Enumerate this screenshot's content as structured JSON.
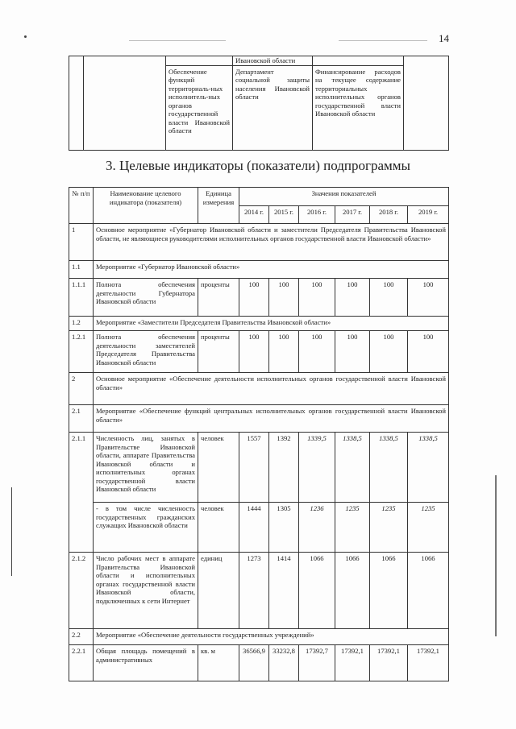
{
  "page_number": "14",
  "top_table": {
    "row0": {
      "responsible": "Ивановской области"
    },
    "row1": {
      "measure": "Обеспечение функций территориаль-ных исполнитель-ных органов государственной власти Ивановской области",
      "responsible": "Департамент социальной защиты населения Ивановской области",
      "description": "Финансирование расходов на текущее содержание территориальных исполнительных органов государственной власти Ивановской области"
    }
  },
  "section_title": "3. Целевые индикаторы (показатели) подпрограммы",
  "indicators": {
    "headers": {
      "num": "№ п/п",
      "name": "Наименование целевого индикатора (показателя)",
      "unit": "Единица измерения",
      "values": "Значения показателей",
      "years": [
        "2014 г.",
        "2015 г.",
        "2016 г.",
        "2017 г.",
        "2018 г.",
        "2019 г."
      ]
    },
    "rows": [
      {
        "num": "1",
        "text": "Основное мероприятие «Губернатор Ивановской области и заместители Председателя Правительства Ивановской области, не являющиеся руководителями исполнительных органов государственной власти Ивановской области»"
      },
      {
        "num": "1.1",
        "text": "Мероприятие «Губернатор Ивановской области»"
      },
      {
        "num": "1.1.1",
        "name": "Полнота обеспечения деятельности Губернатора Ивановской области",
        "unit": "проценты",
        "values": [
          "100",
          "100",
          "100",
          "100",
          "100",
          "100"
        ]
      },
      {
        "num": "1.2",
        "text": "Мероприятие «Заместители Председателя Правительства Ивановской области»"
      },
      {
        "num": "1.2.1",
        "name": "Полнота обеспечения деятельности заместителей Председателя Правительства Ивановской области",
        "unit": "проценты",
        "values": [
          "100",
          "100",
          "100",
          "100",
          "100",
          "100"
        ]
      },
      {
        "num": "2",
        "text": "Основное мероприятие «Обеспечение деятельности исполнительных органов государственной власти Ивановской области»"
      },
      {
        "num": "2.1",
        "text": "Мероприятие «Обеспечение функций центральных исполнительных органов государственной власти Ивановской области»"
      },
      {
        "num": "2.1.1",
        "name": "Численность лиц, занятых в Правительстве Ивановской области, аппарате Правительства Ивановской области и исполнительных органах государственной власти Ивановской области",
        "unit": "человек",
        "values": [
          "1557",
          "1392",
          "1339,5",
          "1338,5",
          "1338,5",
          "1338,5"
        ]
      },
      {
        "num": "",
        "name": "- в том числе численность государственных гражданских служащих Ивановской области",
        "unit": "человек",
        "values": [
          "1444",
          "1305",
          "1236",
          "1235",
          "1235",
          "1235"
        ]
      },
      {
        "num": "2.1.2",
        "name": "Число рабочих мест в аппарате Правительства Ивановской области и исполнительных органах государственной власти Ивановской области, подключенных к сети Интернет",
        "unit": "единиц",
        "values": [
          "1273",
          "1414",
          "1066",
          "1066",
          "1066",
          "1066"
        ]
      },
      {
        "num": "2.2",
        "text": "Мероприятие «Обеспечение деятельности государственных учреждений»"
      },
      {
        "num": "2.2.1",
        "name": "Общая площадь помещений в административных",
        "unit": "кв. м",
        "values": [
          "36566,9",
          "33232,8",
          "17392,7",
          "17392,1",
          "17392,1",
          "17392,1"
        ]
      }
    ]
  }
}
